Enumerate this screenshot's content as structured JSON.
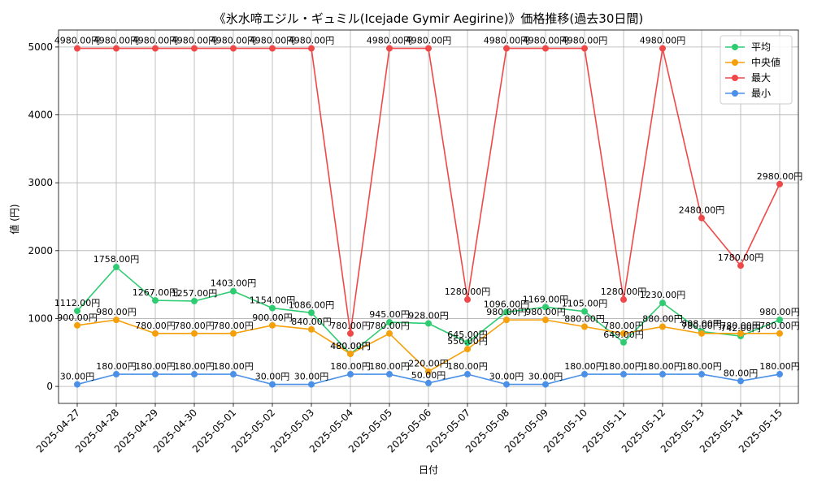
{
  "chart_data": {
    "type": "line",
    "title": "《氷水啼エジル・ギュミル(Icejade Gymir Aegirine)》価格推移(過去30日間)",
    "xlabel": "日付",
    "ylabel": "値 (円)",
    "ylim": [
      -250,
      5250
    ],
    "yticks": [
      0,
      1000,
      2000,
      3000,
      4000,
      5000
    ],
    "ytick_labels": [
      "0",
      "1000",
      "2000",
      "3000",
      "4000",
      "5000"
    ],
    "grid": true,
    "legend_position": "top-right",
    "categories": [
      "2025-04-27",
      "2025-04-28",
      "2025-04-29",
      "2025-04-30",
      "2025-05-01",
      "2025-05-02",
      "2025-05-03",
      "2025-05-04",
      "2025-05-05",
      "2025-05-06",
      "2025-05-07",
      "2025-05-08",
      "2025-05-09",
      "2025-05-10",
      "2025-05-11",
      "2025-05-12",
      "2025-05-13",
      "2025-05-14",
      "2025-05-15"
    ],
    "series": [
      {
        "name": "平均",
        "color": "#2ecc71",
        "values": [
          1112,
          1758,
          1267,
          1257,
          1403,
          1154,
          1086,
          480,
          945,
          928,
          645,
          1096,
          1169,
          1105,
          649,
          1230,
          808,
          742,
          980
        ],
        "labels": [
          "1112.00円",
          "1758.00円",
          "1267.00円",
          "1257.00円",
          "1403.00円",
          "1154.00円",
          "1086.00円",
          "480.00円",
          "945.00円",
          "928.00円",
          "645.00円",
          "1096.00円",
          "1169.00円",
          "1105.00円",
          "649.00円",
          "1230.00円",
          "808.00円",
          "742.00円",
          "980.00円"
        ]
      },
      {
        "name": "中央値",
        "color": "#f5a00a",
        "values": [
          900,
          980,
          780,
          780,
          780,
          900,
          840,
          480,
          780,
          220,
          550,
          980,
          980,
          880,
          780,
          880,
          780,
          780,
          780
        ],
        "labels": [
          "900.00円",
          "980.00円",
          "780.00円",
          "780.00円",
          "780.00円",
          "900.00円",
          "840.00円",
          "480.00円",
          "780.00円",
          "220.00円",
          "550.00円",
          "980.00円",
          "980.00円",
          "880.00円",
          "780.00円",
          "880.00円",
          "780.00円",
          "780.00円",
          "780.00円"
        ]
      },
      {
        "name": "最大",
        "color": "#f04848",
        "values": [
          4980,
          4980,
          4980,
          4980,
          4980,
          4980,
          4980,
          780,
          4980,
          4980,
          1280,
          4980,
          4980,
          4980,
          1280,
          4980,
          2480,
          1780,
          2980
        ],
        "labels": [
          "4980.00円",
          "4980.00円",
          "4980.00円",
          "4980.00円",
          "4980.00円",
          "4980.00円",
          "4980.00円",
          "780.00円",
          "4980.00円",
          "4980.00円",
          "1280.00円",
          "4980.00円",
          "4980.00円",
          "4980.00円",
          "1280.00円",
          "4980.00円",
          "2480.00円",
          "1780.00円",
          "2980.00円"
        ]
      },
      {
        "name": "最小",
        "color": "#4a90e8",
        "values": [
          30,
          180,
          180,
          180,
          180,
          30,
          30,
          180,
          180,
          50,
          180,
          30,
          30,
          180,
          180,
          180,
          180,
          80,
          180
        ],
        "labels": [
          "30.00円",
          "180.00円",
          "180.00円",
          "180.00円",
          "180.00円",
          "30.00円",
          "30.00円",
          "180.00円",
          "180.00円",
          "50.00円",
          "180.00円",
          "30.00円",
          "30.00円",
          "180.00円",
          "180.00円",
          "180.00円",
          "180.00円",
          "80.00円",
          "180.00円"
        ]
      }
    ]
  }
}
